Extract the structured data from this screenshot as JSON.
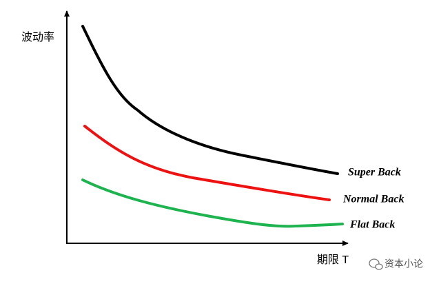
{
  "y_axis_label": "波动率",
  "x_axis_label": "期限 T",
  "curves": [
    {
      "label": "Super Back"
    },
    {
      "label": "Normal Back"
    },
    {
      "label": "Flat Back"
    }
  ],
  "watermark": "资本小论"
}
